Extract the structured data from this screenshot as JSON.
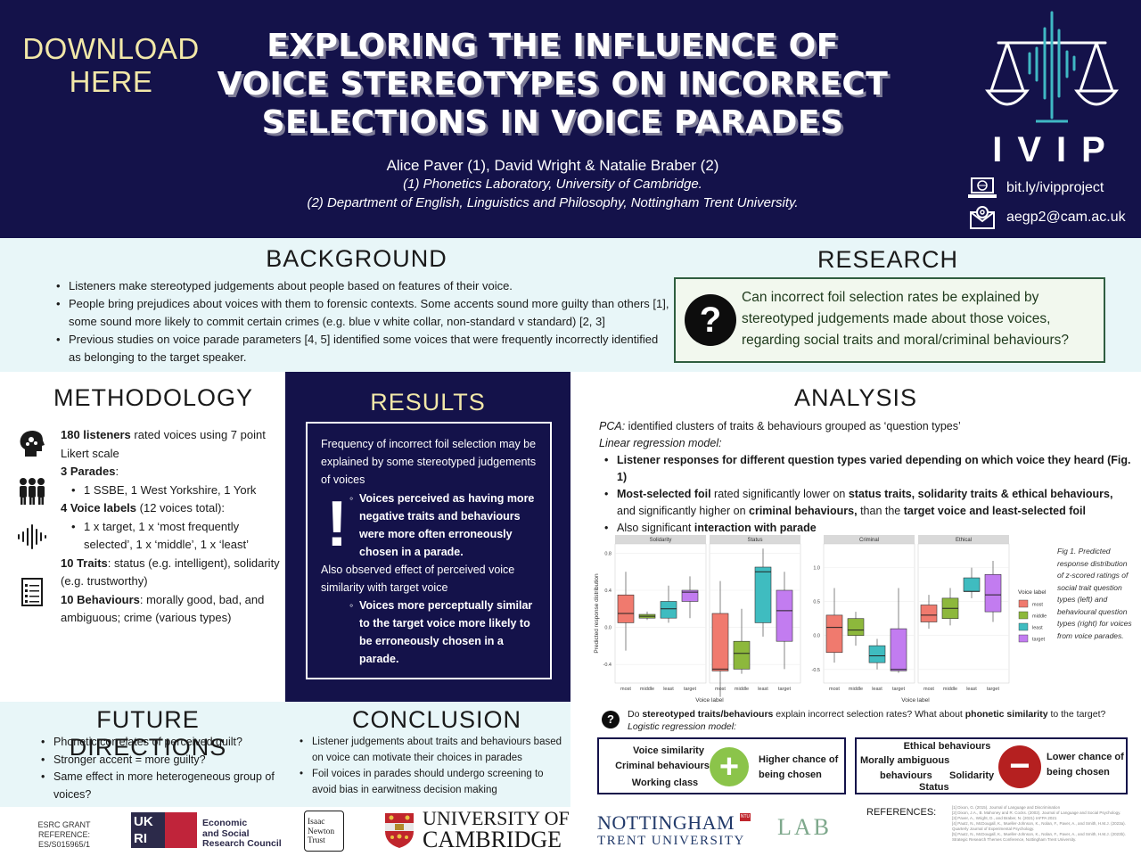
{
  "header": {
    "download_line1": "DOWNLOAD",
    "download_line2": "HERE",
    "title_line1": "EXPLORING THE INFLUENCE OF",
    "title_line2": "VOICE STEREOTYPES ON INCORRECT",
    "title_line3": "SELECTIONS IN VOICE PARADES",
    "authors": "Alice Paver (1), David Wright & Natalie Braber (2)",
    "affiliation1": "(1) Phonetics Laboratory, University of Cambridge.",
    "affiliation2": "(2) Department of English, Linguistics and Philosophy, Nottingham Trent University.",
    "logo_text": "IVIP",
    "website": "bit.ly/ivipproject",
    "email": "aegp2@cam.ac.uk"
  },
  "background": {
    "heading": "BACKGROUND",
    "items": [
      "Listeners make stereotyped judgements about people based on features of their voice.",
      "People bring prejudices about voices with them to forensic contexts. Some accents sound more guilty than others [1], some sound more likely to commit certain crimes (e.g. blue v white collar, non-standard v standard) [2, 3]",
      "Previous studies on voice parade parameters [4, 5] identified some voices that were frequently incorrectly identified as belonging to the target speaker."
    ]
  },
  "research_question": {
    "heading": "RESEARCH QUESTION",
    "icon_glyph": "?",
    "text": "Can incorrect foil selection rates be explained by stereotyped judgements made about those voices, regarding social traits and moral/criminal behaviours?"
  },
  "methodology": {
    "heading": "METHODOLOGY",
    "l1_bold": "180 listeners",
    "l1_rest": " rated voices using 7 point Likert scale",
    "l2_bold": "3 Parades",
    "l2_rest": ":",
    "l3": "1 SSBE, 1 West Yorkshire, 1 York",
    "l4_bold": "4 Voice labels",
    "l4_rest": " (12 voices total):",
    "l5": "1 x target, 1 x ‘most frequently selected’, 1 x ‘middle’, 1 x ‘least’",
    "l6_bold": "10 Traits",
    "l6_rest": ": status (e.g. intelligent), solidarity (e.g. trustworthy)",
    "l7_bold": "10 Behaviours",
    "l7_rest": ": morally good, bad, and  ambiguous; crime (various types)"
  },
  "results": {
    "heading": "RESULTS",
    "p1": "Frequency of incorrect foil selection may be explained by some stereotyped judgements of voices",
    "b1": "Voices perceived as having more negative traits and behaviours were more often erroneously chosen in a parade.",
    "p2": "Also observed effect of perceived voice similarity with target voice",
    "b2": "Voices more perceptually similar to the target voice more likely to be erroneously chosen in a parade.",
    "icon_glyph": "!"
  },
  "analysis": {
    "heading": "ANALYSIS",
    "pca_label": "PCA:",
    "pca_text": " identified clusters of traits & behaviours grouped as ‘question types’",
    "lrm": "Linear regression model:",
    "b1": "Listener responses for different question types varied depending on which voice they heard (Fig. 1)",
    "b2_bold1": "Most-selected foil",
    "b2_t1": " rated significantly lower on ",
    "b2_bold2": "status traits, solidarity traits & ethical behaviours,",
    "b2_t2": " and significantly higher on ",
    "b2_bold3": "criminal behaviours,",
    "b2_t3": " than the ",
    "b2_bold4": "target voice and least-selected foil",
    "b3_t": "Also significant ",
    "b3_bold": "interaction with parade",
    "fig_caption": "Fig 1. Predicted response distribution of z-scored ratings of social trait question types (left) and behavioural question types (right) for voices from voice parades.",
    "q2_t1": "Do ",
    "q2_b1": "stereotyped traits/behaviours",
    "q2_t2": " explain incorrect selection rates? What about ",
    "q2_b2": "phonetic similarity",
    "q2_t3": " to the target?",
    "log": "Logistic regression model:",
    "left_items": [
      "Voice similarity",
      "Criminal behaviours",
      "Working class"
    ],
    "left_result": "Higher chance of being chosen",
    "right_items": [
      "Ethical behaviours",
      "Morally ambiguous",
      "behaviours",
      "Solidarity",
      "Status"
    ],
    "right_result": "Lower chance of being chosen",
    "plus": "+",
    "minus": "−"
  },
  "chart_data": {
    "type": "boxplot",
    "ylabel": "Predicted response distribution",
    "xlabel": "Voice label",
    "legend_title": "Voice label",
    "legend_position": "right",
    "categories": [
      "most",
      "middle",
      "least",
      "target"
    ],
    "colors": {
      "most": "#f07a6e",
      "middle": "#8db83c",
      "least": "#3fbcc0",
      "target": "#c27cf0"
    },
    "panels": [
      {
        "name": "Solidarity",
        "group": "traits",
        "yticks": [
          "0.8",
          "0.4",
          "0.0",
          "-0.4"
        ],
        "ylim": [
          -0.6,
          0.9
        ],
        "boxes": {
          "most": [
            -0.25,
            0.05,
            0.15,
            0.35,
            0.6
          ],
          "middle": [
            0.08,
            0.1,
            0.12,
            0.14,
            0.17
          ],
          "least": [
            0.05,
            0.1,
            0.2,
            0.28,
            0.45
          ],
          "target": [
            0.1,
            0.28,
            0.38,
            0.4,
            0.55
          ]
        }
      },
      {
        "name": "Status",
        "group": "traits",
        "yticks": [
          "0.8",
          "0.4",
          "0.0",
          "-0.4"
        ],
        "ylim": [
          -0.6,
          0.9
        ],
        "boxes": {
          "most": [
            -0.75,
            -0.47,
            -0.45,
            0.15,
            0.5
          ],
          "middle": [
            -0.5,
            -0.45,
            -0.28,
            -0.15,
            0.2
          ],
          "least": [
            -0.1,
            0.05,
            0.6,
            0.65,
            0.85
          ],
          "target": [
            -0.45,
            -0.15,
            0.18,
            0.4,
            0.6
          ]
        }
      },
      {
        "name": "Criminal",
        "group": "behaviours",
        "yticks": [
          "1.0",
          "0.5",
          "0.0",
          "-0.5"
        ],
        "ylim": [
          -0.7,
          1.35
        ],
        "boxes": {
          "most": [
            -0.4,
            -0.25,
            0.12,
            0.3,
            0.7
          ],
          "middle": [
            -0.15,
            0.0,
            0.08,
            0.25,
            0.35
          ],
          "least": [
            -0.5,
            -0.4,
            -0.3,
            -0.15,
            -0.05
          ],
          "target": [
            -0.55,
            -0.52,
            -0.5,
            0.1,
            0.7
          ]
        }
      },
      {
        "name": "Ethical",
        "group": "behaviours",
        "yticks": [
          "1.0",
          "0.5",
          "0.0",
          "-0.5"
        ],
        "ylim": [
          -0.7,
          1.35
        ],
        "boxes": {
          "most": [
            0.1,
            0.2,
            0.3,
            0.45,
            0.6
          ],
          "middle": [
            0.15,
            0.25,
            0.4,
            0.55,
            0.7
          ],
          "least": [
            0.55,
            0.65,
            0.65,
            0.85,
            1.0
          ],
          "target": [
            0.2,
            0.35,
            0.6,
            0.9,
            1.1
          ]
        }
      }
    ]
  },
  "future": {
    "heading": "FUTURE DIRECTIONS",
    "items": [
      "Phonetic correlates of perceived guilt?",
      "Stronger accent = more guilty?",
      "Same effect in more heterogeneous group of voices?"
    ]
  },
  "conclusion": {
    "heading": "CONCLUSION",
    "items": [
      "Listener judgements about traits and behaviours based on voice can motivate their choices in parades",
      "Foil voices in parades should undergo screening to avoid bias in earwitness decision making"
    ]
  },
  "footer": {
    "grant_l1": "ESRC GRANT REFERENCE:",
    "grant_l2": "ES/S015965/1",
    "ukri": "UK RI",
    "esrc_l1": "Economic",
    "esrc_l2": "and Social",
    "esrc_l3": "Research Council",
    "newton_l1": "Isaac",
    "newton_l2": "Newton",
    "newton_l3": "Trust",
    "cam_l1": "UNIVERSITY OF",
    "cam_l2": "CAMBRIDGE",
    "ntu_l1": "NOTTINGHAM",
    "ntu_l2": "TRENT UNIVERSITY",
    "ntu_badge": "NTU",
    "lab": "LAB",
    "refs_label": "REFERENCES:",
    "refs": [
      "[1] Dixon, G. (2015). Journal of Language and Discrimination",
      "[2] Dixon, J.A., B. Mahoney and R. Cocks. (2002). Journal of Language and Social Psychology.",
      "[3] Paver, A., Wright, D., and Braber, N. (2021) IAFPA 2021",
      "[4] Pautz, N., McDougall, K., Mueller-Johnson, K., Nolan, F., Paver, A., and Smith, H.M.J. (2023a). Quarterly Journal of Experimental Psychology.",
      "[5] Pautz, N., McDougall, K., Mueller-Johnson, K., Nolan, F., Paver, A., and Smith, H.M.J. (2023b). Strategic Research Themes Conference, Nottingham Trent University."
    ]
  }
}
